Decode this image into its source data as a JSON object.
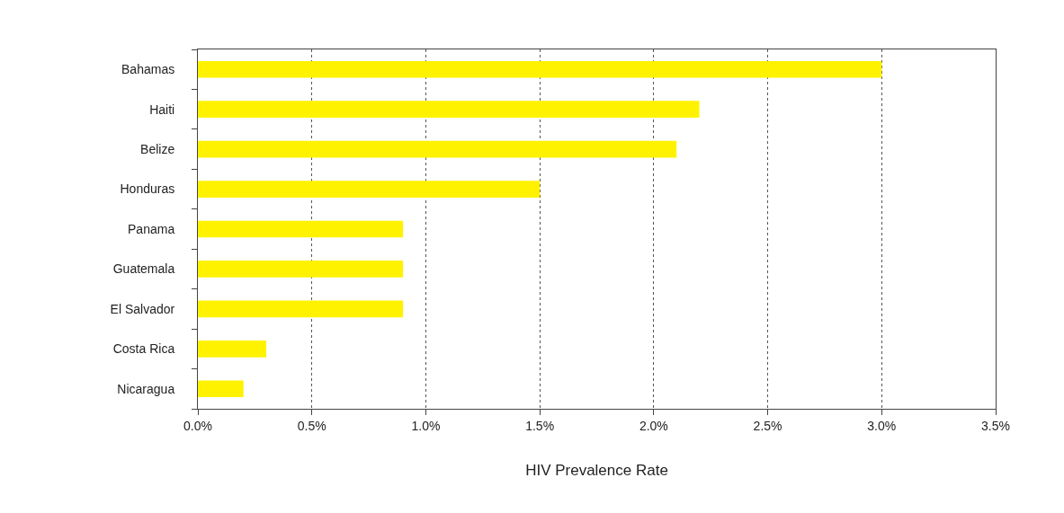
{
  "chart_data": {
    "type": "bar",
    "orientation": "horizontal",
    "xlabel": "HIV Prevalence Rate",
    "categories": [
      "Bahamas",
      "Haiti",
      "Belize",
      "Honduras",
      "Panama",
      "Guatemala",
      "El Salvador",
      "Costa Rica",
      "Nicaragua"
    ],
    "values": [
      3.0,
      2.2,
      2.1,
      1.5,
      0.9,
      0.9,
      0.9,
      0.3,
      0.2
    ],
    "color": "#fff200",
    "xlim": [
      0,
      3.5
    ],
    "xticks": [
      {
        "value": 0,
        "label": "0.0%"
      },
      {
        "value": 0.5,
        "label": "0.5%"
      },
      {
        "value": 1,
        "label": "1.0%"
      },
      {
        "value": 1.5,
        "label": "1.5%"
      },
      {
        "value": 2,
        "label": "2.0%"
      },
      {
        "value": 2.5,
        "label": "2.5%"
      },
      {
        "value": 3,
        "label": "3.0%"
      },
      {
        "value": 3.5,
        "label": "3.5%"
      }
    ],
    "grid": "x"
  }
}
